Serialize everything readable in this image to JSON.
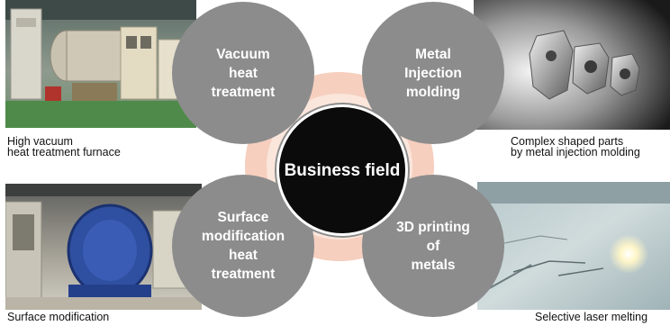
{
  "center": {
    "line1": "Business",
    "line2": "field"
  },
  "fields": [
    {
      "lines": [
        "Vacuum",
        "heat",
        "treatment"
      ]
    },
    {
      "lines": [
        "Metal",
        "Injection",
        "molding"
      ]
    },
    {
      "lines": [
        "Surface",
        "modification",
        "heat",
        "treatment"
      ]
    },
    {
      "lines": [
        "3D printing",
        "of",
        "metals"
      ]
    }
  ],
  "captions": {
    "top_left": [
      "High vacuum",
      "heat treatment furnace"
    ],
    "top_right": [
      "Complex shaped parts",
      "by metal injection molding"
    ],
    "bottom_left": [
      "Surface modification"
    ],
    "bottom_right": [
      "Selective laser melting"
    ]
  },
  "photos": {
    "top_left": "vacuum-furnace-photo",
    "top_right": "mim-parts-photo",
    "bottom_left": "surface-furnace-photo",
    "bottom_right": "laser-melting-photo"
  }
}
